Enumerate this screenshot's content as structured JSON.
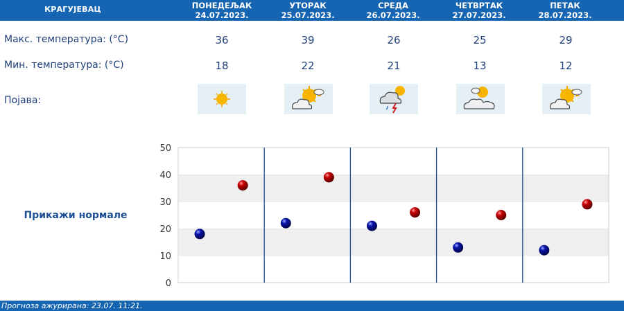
{
  "city": "КРАГУЈЕВАЦ",
  "days": [
    {
      "name": "ПОНЕДЕЉАК",
      "date": "24.07.2023.",
      "max": "36",
      "min": "18",
      "icon": "sunny-icon"
    },
    {
      "name": "УТОРАК",
      "date": "25.07.2023.",
      "max": "39",
      "min": "22",
      "icon": "sun-cloud-icon"
    },
    {
      "name": "СРЕДА",
      "date": "26.07.2023.",
      "max": "26",
      "min": "21",
      "icon": "thunderstorm-icon"
    },
    {
      "name": "ЧЕТВРТАК",
      "date": "27.07.2023.",
      "max": "25",
      "min": "13",
      "icon": "partly-cloudy-icon"
    },
    {
      "name": "ПЕТАК",
      "date": "28.07.2023.",
      "max": "29",
      "min": "12",
      "icon": "sun-cloud-icon"
    }
  ],
  "labels": {
    "max": "Макс. температура: (°C)",
    "min": "Мин. температура: (°C)",
    "phenomenon": "Појава:"
  },
  "show_normals": "Прикажи нормале",
  "footer": "Прогноза ажурирана:  23.07.  11:21.",
  "colors": {
    "header": "#1565b2",
    "max_marker": "#c80000",
    "min_marker": "#0a14a8"
  },
  "chart_data": {
    "type": "scatter",
    "categories": [
      "ПОНЕДЕЉАК",
      "УТОРАК",
      "СРЕДА",
      "ЧЕТВРТАК",
      "ПЕТАК"
    ],
    "series": [
      {
        "values": [
          18,
          22,
          21,
          13,
          12
        ],
        "color": "#0a14a8"
      },
      {
        "values": [
          36,
          39,
          26,
          25,
          29
        ],
        "color": "#c80000"
      }
    ],
    "ylim": [
      0,
      50
    ],
    "yticks": [
      "0",
      "10",
      "20",
      "30",
      "40",
      "50"
    ],
    "grid": true
  }
}
